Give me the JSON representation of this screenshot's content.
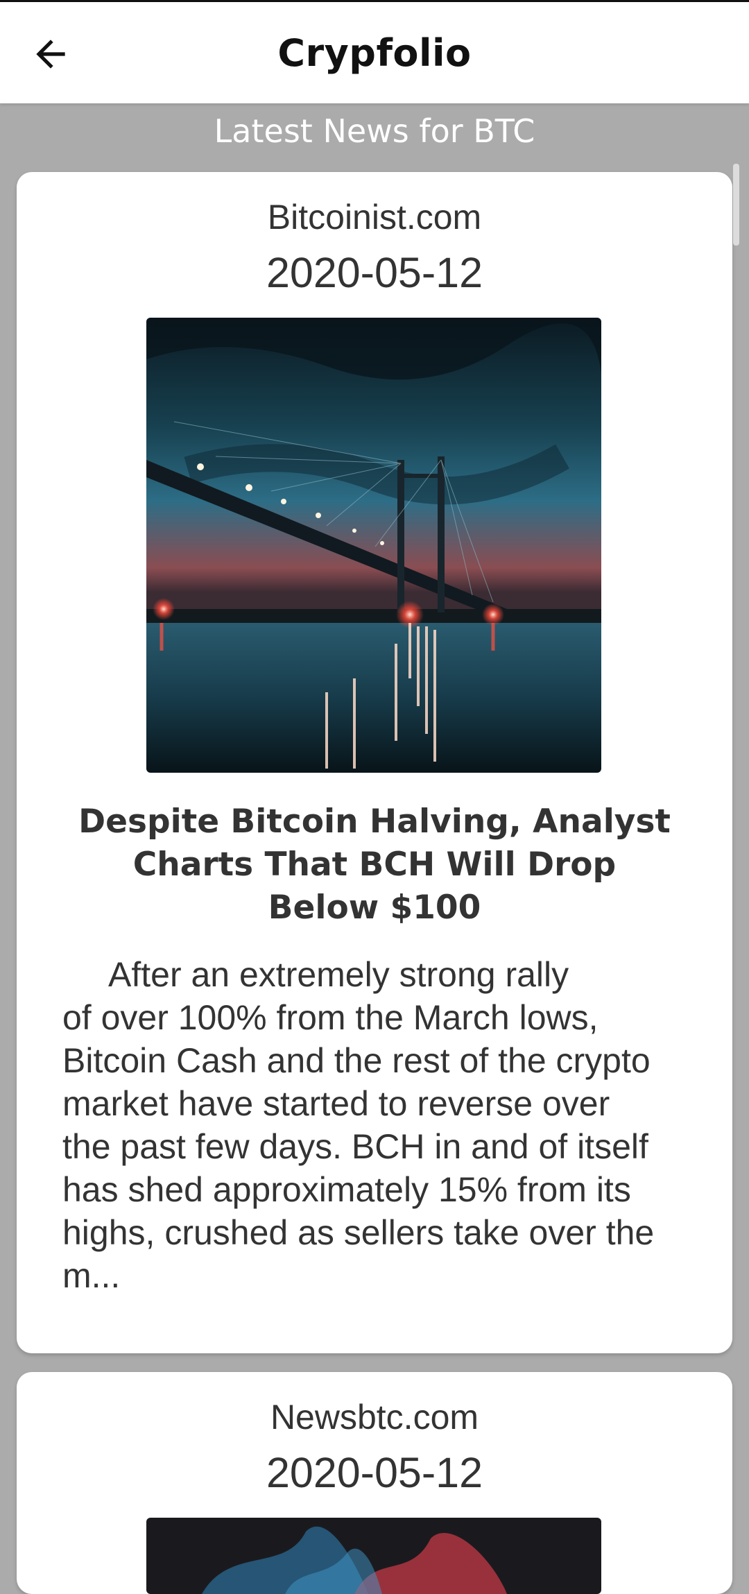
{
  "app": {
    "title": "Crypfolio"
  },
  "section": {
    "title": "Latest News for BTC"
  },
  "articles": [
    {
      "source": "Bitcoinist.com",
      "date": "2020-05-12",
      "image": "bridge-at-night-photo",
      "headline": "Despite Bitcoin Halving, Analyst Charts That BCH Will Drop Below $100",
      "summary": "After an extremely strong rally\nof over 100% from the March lows,\nBitcoin Cash and the rest of the crypto\nmarket have started to reverse over\nthe past few days. BCH in and of itself\nhas shed approximately 15% from its\nhighs, crushed as sellers take over the\nm..."
    },
    {
      "source": "Newsbtc.com",
      "date": "2020-05-12",
      "image": "colored-smoke-photo"
    }
  ],
  "icons": {
    "back": "arrow-left-icon"
  },
  "colors": {
    "background": "#ababab",
    "card": "#ffffff",
    "text": "#333333",
    "appbar": "#ffffff"
  }
}
